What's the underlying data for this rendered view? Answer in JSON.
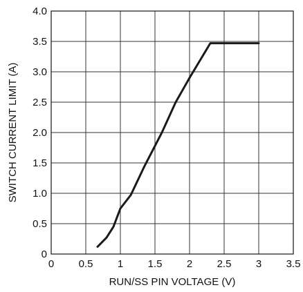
{
  "chart_data": {
    "type": "line",
    "title": "",
    "xlabel": "RUN/SS PIN VOLTAGE (V)",
    "ylabel": "SWITCH CURRENT LIMIT (A)",
    "xlim": [
      0,
      3.5
    ],
    "ylim": [
      0,
      4.0
    ],
    "x_ticks": [
      0,
      0.5,
      1,
      1.5,
      2,
      2.5,
      3,
      3.5
    ],
    "x_tick_labels": [
      "0",
      "0.5",
      "1",
      "1.5",
      "2",
      "2.5",
      "3",
      "3.5"
    ],
    "y_ticks": [
      0,
      0.5,
      1.0,
      1.5,
      2.0,
      2.5,
      3.0,
      3.5,
      4.0
    ],
    "y_tick_labels": [
      "0",
      "0.5",
      "1.0",
      "1.5",
      "2.0",
      "2.5",
      "3.0",
      "3.5",
      "4.0"
    ],
    "grid": true,
    "series": [
      {
        "color": "#1a1a1a",
        "x": [
          0.67,
          0.8,
          0.9,
          0.95,
          1.0,
          1.15,
          1.35,
          1.6,
          1.8,
          2.0,
          2.3,
          3.0
        ],
        "y": [
          0.12,
          0.27,
          0.45,
          0.6,
          0.75,
          0.97,
          1.45,
          2.0,
          2.5,
          2.9,
          3.47,
          3.47
        ]
      }
    ]
  }
}
